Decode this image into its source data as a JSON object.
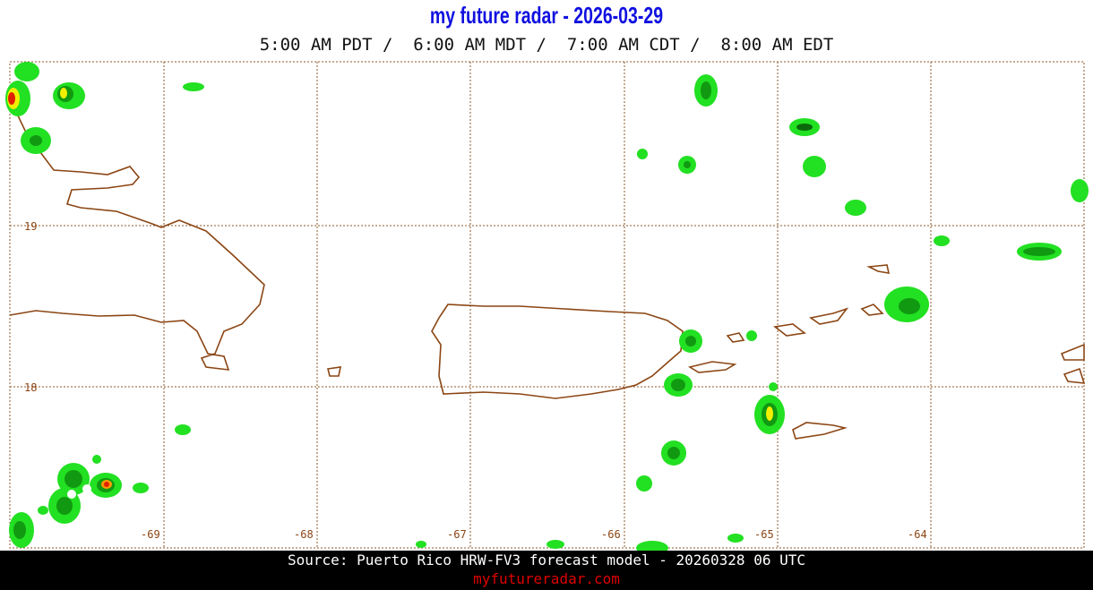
{
  "header": {
    "title": "my future radar - 2026-03-29",
    "times": "5:00 AM PDT /  6:00 AM MDT /  7:00 AM CDT /  8:00 AM EDT"
  },
  "map": {
    "longitude_labels": [
      "-69",
      "-68",
      "-67",
      "-66",
      "-65",
      "-64"
    ],
    "latitude_labels": [
      "19",
      "18"
    ]
  },
  "footer": {
    "source": "Source: Puerto Rico HRW-FV3 forecast model - 20260328 06 UTC",
    "site": "myfutureradar.com"
  }
}
